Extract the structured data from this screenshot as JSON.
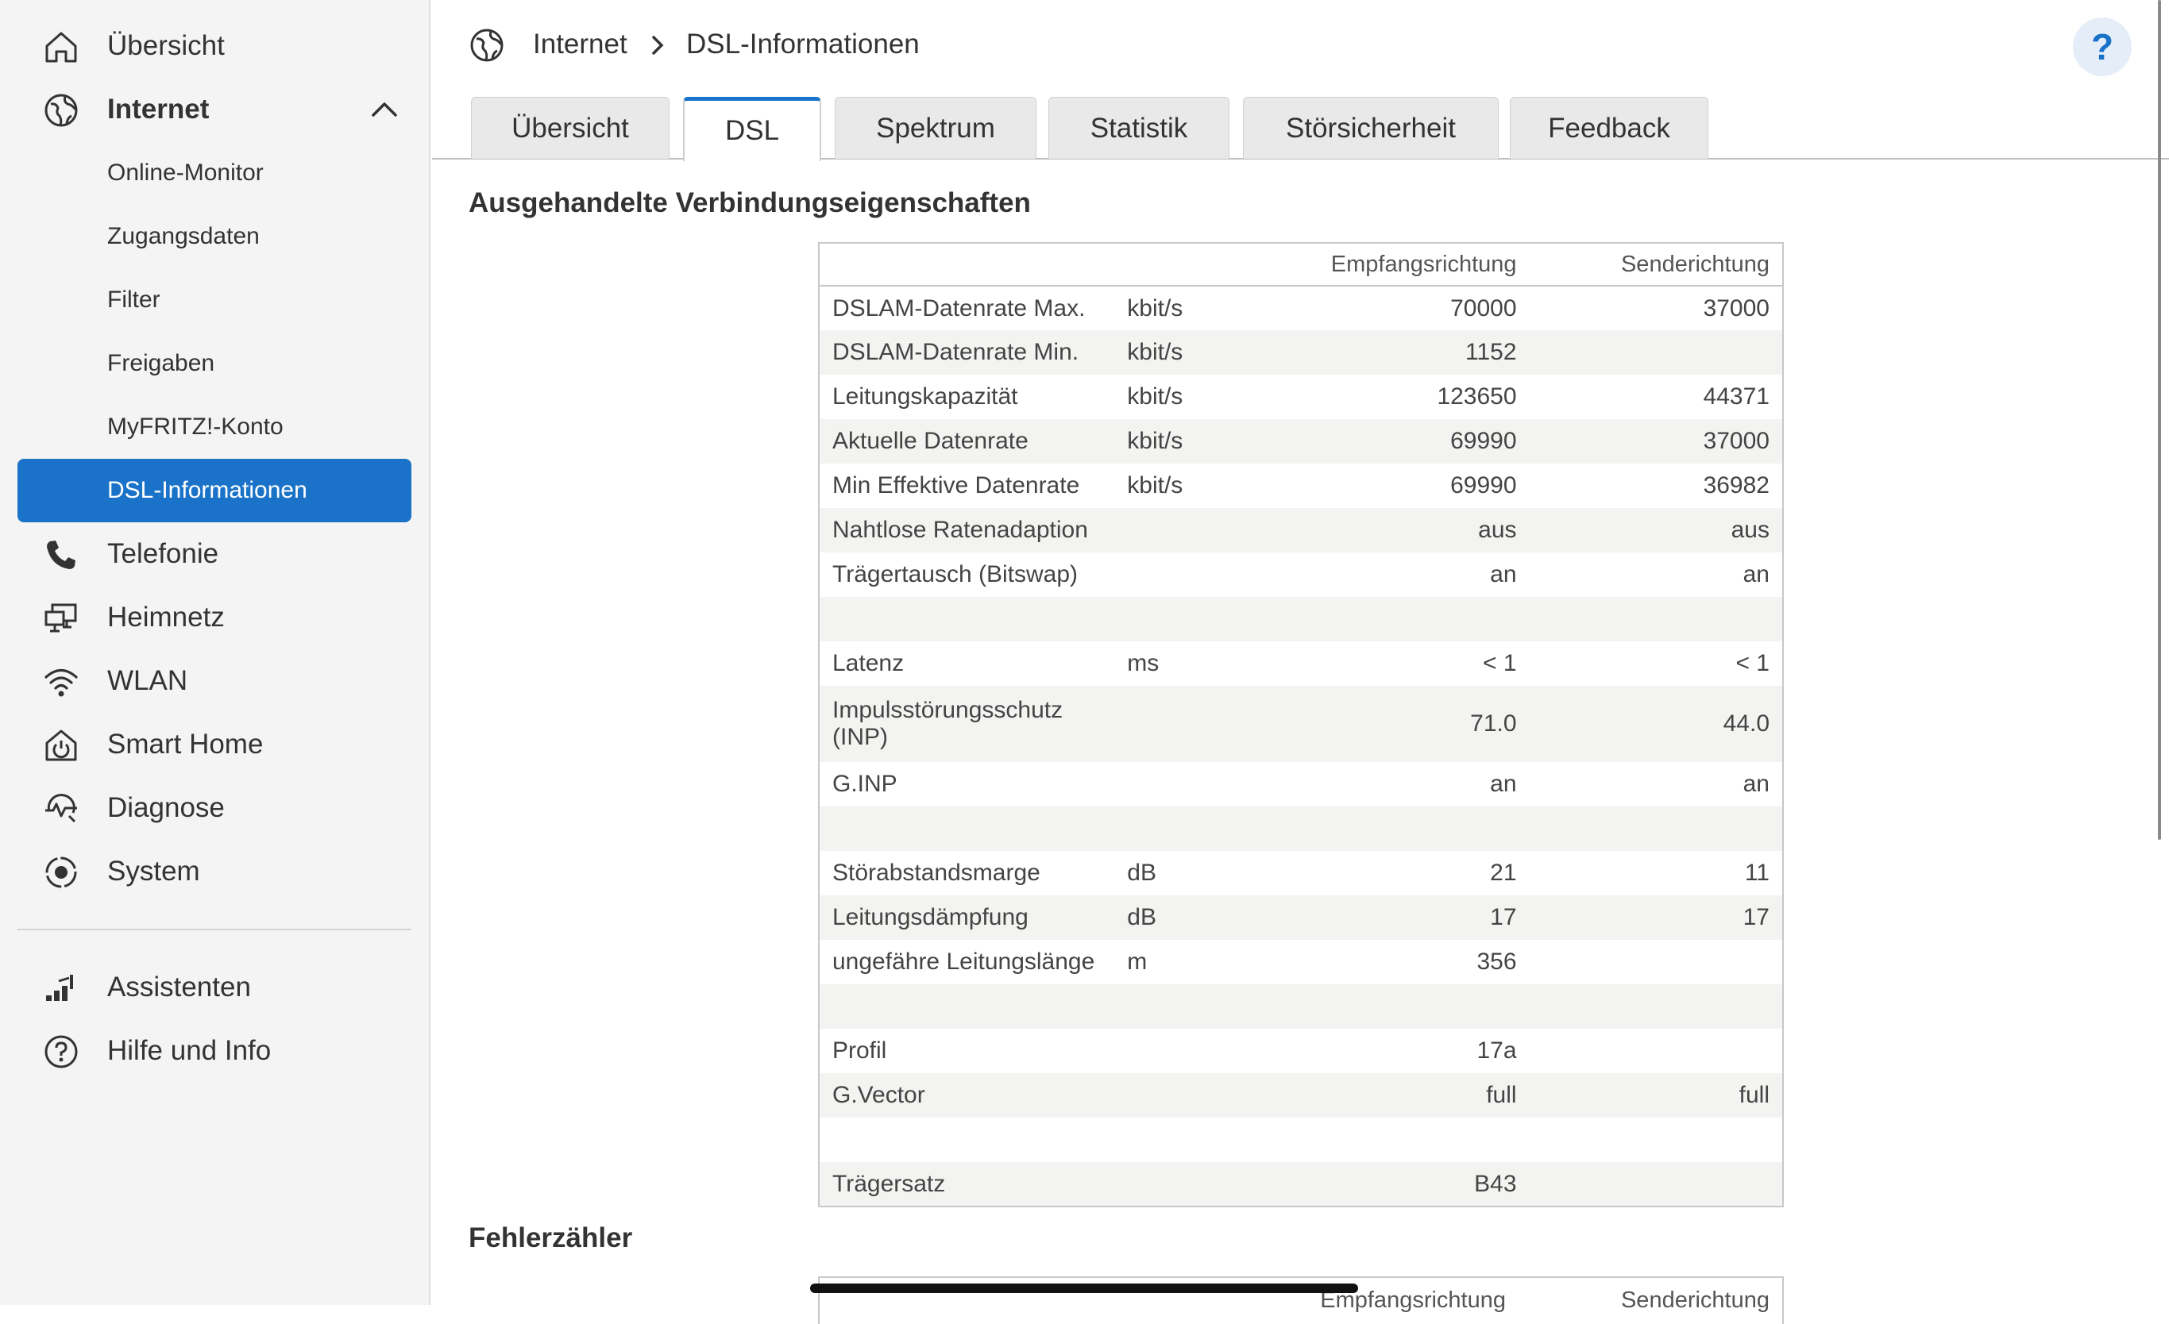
{
  "sidebar": {
    "items": [
      {
        "label": "Übersicht"
      },
      {
        "label": "Internet"
      },
      {
        "label": "Online-Monitor"
      },
      {
        "label": "Zugangsdaten"
      },
      {
        "label": "Filter"
      },
      {
        "label": "Freigaben"
      },
      {
        "label": "MyFRITZ!-Konto"
      },
      {
        "label": "DSL-Informationen"
      },
      {
        "label": "Telefonie"
      },
      {
        "label": "Heimnetz"
      },
      {
        "label": "WLAN"
      },
      {
        "label": "Smart Home"
      },
      {
        "label": "Diagnose"
      },
      {
        "label": "System"
      },
      {
        "label": "Assistenten"
      },
      {
        "label": "Hilfe und Info"
      }
    ]
  },
  "breadcrumb": {
    "root": "Internet",
    "current": "DSL-Informationen"
  },
  "help": {
    "label": "?"
  },
  "tabs": [
    {
      "label": "Übersicht"
    },
    {
      "label": "DSL"
    },
    {
      "label": "Spektrum"
    },
    {
      "label": "Statistik"
    },
    {
      "label": "Störsicherheit"
    },
    {
      "label": "Feedback"
    }
  ],
  "section1": {
    "title": "Ausgehandelte Verbindungseigenschaften",
    "headers": {
      "down": "Empfangsrichtung",
      "up": "Senderichtung"
    },
    "rows": [
      {
        "name": "DSLAM-Datenrate Max.",
        "unit": "kbit/s",
        "down": "70000",
        "up": "37000"
      },
      {
        "name": "DSLAM-Datenrate Min.",
        "unit": "kbit/s",
        "down": "1152",
        "up": ""
      },
      {
        "name": "Leitungskapazität",
        "unit": "kbit/s",
        "down": "123650",
        "up": "44371"
      },
      {
        "name": "Aktuelle Datenrate",
        "unit": "kbit/s",
        "down": "69990",
        "up": "37000"
      },
      {
        "name": "Min Effektive Datenrate",
        "unit": "kbit/s",
        "down": "69990",
        "up": "36982"
      },
      {
        "name": "Nahtlose Ratenadaption",
        "unit": "",
        "down": "aus",
        "up": "aus"
      },
      {
        "name": "Trägertausch (Bitswap)",
        "unit": "",
        "down": "an",
        "up": "an"
      },
      {
        "name": "",
        "unit": "",
        "down": "",
        "up": ""
      },
      {
        "name": "Latenz",
        "unit": "ms",
        "down": "< 1",
        "up": "< 1"
      },
      {
        "name": "Impulsstörungsschutz (INP)",
        "unit": "",
        "down": "71.0",
        "up": "44.0"
      },
      {
        "name": "G.INP",
        "unit": "",
        "down": "an",
        "up": "an"
      },
      {
        "name": "",
        "unit": "",
        "down": "",
        "up": ""
      },
      {
        "name": "Störabstandsmarge",
        "unit": "dB",
        "down": "21",
        "up": "11"
      },
      {
        "name": "Leitungsdämpfung",
        "unit": "dB",
        "down": "17",
        "up": "17"
      },
      {
        "name": "ungefähre Leitungslänge",
        "unit": "m",
        "down": "356",
        "up": ""
      },
      {
        "name": "",
        "unit": "",
        "down": "",
        "up": ""
      },
      {
        "name": "Profil",
        "unit": "",
        "down": "17a",
        "up": ""
      },
      {
        "name": "G.Vector",
        "unit": "",
        "down": "full",
        "up": "full"
      },
      {
        "name": "",
        "unit": "",
        "down": "",
        "up": ""
      },
      {
        "name": "Trägersatz",
        "unit": "",
        "down": "B43",
        "up": ""
      }
    ]
  },
  "section2": {
    "title": "Fehlerzähler",
    "headers": {
      "down": "Empfangsrichtung",
      "up": "Senderichtung"
    }
  },
  "colors": {
    "accent": "#1a73c8",
    "sidebar_bg": "#f4f4f4",
    "row_alt": "#f3f3f1"
  }
}
